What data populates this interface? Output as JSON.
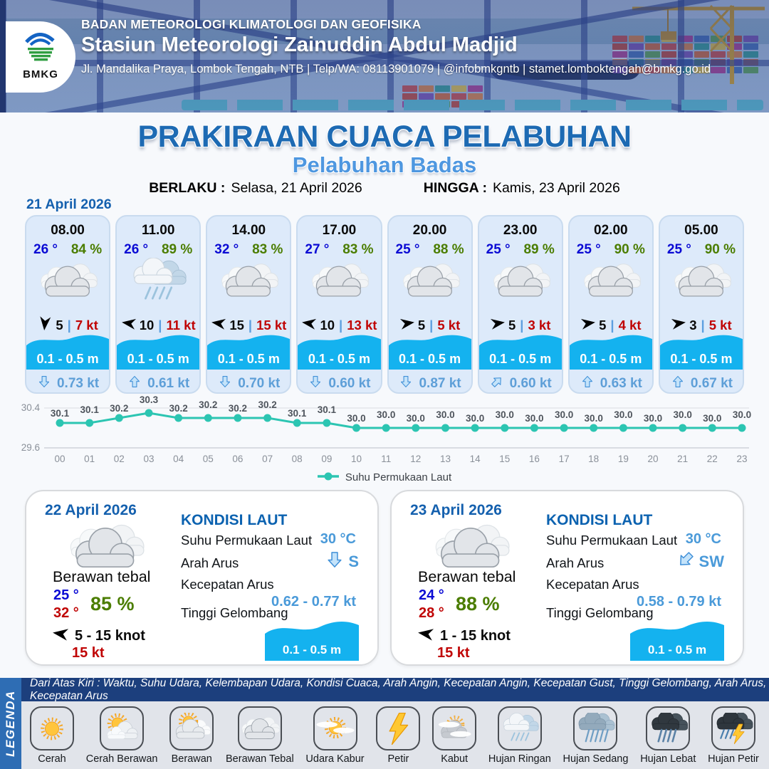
{
  "header": {
    "logo_label": "BMKG",
    "agency": "BADAN METEOROLOGI KLIMATOLOGI DAN GEOFISIKA",
    "station": "Stasiun Meteorologi Zainuddin Abdul Madjid",
    "contact": "Jl. Mandalika Praya, Lombok Tengah, NTB | Telp/WA: 08113901079 | @infobmkgntb | stamet.lomboktengah@bmkg.go.id"
  },
  "title": {
    "main": "PRAKIRAAN CUACA PELABUHAN",
    "subtitle": "Pelabuhan Badas",
    "berlaku_label": "BERLAKU :",
    "berlaku_value": "Selasa, 21 April 2026",
    "hingga_label": "HINGGA :",
    "hingga_value": "Kamis, 23 April 2026"
  },
  "forecast": {
    "date_label": "21 April 2026",
    "sep": "|",
    "cards": [
      {
        "time": "08.00",
        "temp": "26 °",
        "humidity": "84 %",
        "weather_icon": "berawan-tebal",
        "wind_dir": "down",
        "wind_speed": "5",
        "gust": "7 kt",
        "wave": "0.1 - 0.5 m",
        "current_dir": "down",
        "current_speed": "0.73 kt"
      },
      {
        "time": "11.00",
        "temp": "26 °",
        "humidity": "89 %",
        "weather_icon": "hujan-ringan",
        "wind_dir": "left",
        "wind_speed": "10",
        "gust": "11 kt",
        "wave": "0.1 - 0.5 m",
        "current_dir": "up",
        "current_speed": "0.61 kt"
      },
      {
        "time": "14.00",
        "temp": "32 °",
        "humidity": "83 %",
        "weather_icon": "berawan-tebal",
        "wind_dir": "left",
        "wind_speed": "15",
        "gust": "15 kt",
        "wave": "0.1 - 0.5 m",
        "current_dir": "down",
        "current_speed": "0.70 kt"
      },
      {
        "time": "17.00",
        "temp": "27 °",
        "humidity": "83 %",
        "weather_icon": "berawan-tebal",
        "wind_dir": "left",
        "wind_speed": "10",
        "gust": "13 kt",
        "wave": "0.1 - 0.5 m",
        "current_dir": "down",
        "current_speed": "0.60 kt"
      },
      {
        "time": "20.00",
        "temp": "25 °",
        "humidity": "88 %",
        "weather_icon": "berawan-tebal",
        "wind_dir": "right",
        "wind_speed": "5",
        "gust": "5 kt",
        "wave": "0.1 - 0.5 m",
        "current_dir": "down",
        "current_speed": "0.87 kt"
      },
      {
        "time": "23.00",
        "temp": "25 °",
        "humidity": "89 %",
        "weather_icon": "berawan-tebal",
        "wind_dir": "right",
        "wind_speed": "5",
        "gust": "3 kt",
        "wave": "0.1 - 0.5 m",
        "current_dir": "ne",
        "current_speed": "0.60 kt"
      },
      {
        "time": "02.00",
        "temp": "25 °",
        "humidity": "90 %",
        "weather_icon": "berawan-tebal",
        "wind_dir": "right",
        "wind_speed": "5",
        "gust": "4 kt",
        "wave": "0.1 - 0.5 m",
        "current_dir": "up",
        "current_speed": "0.63 kt"
      },
      {
        "time": "05.00",
        "temp": "25 °",
        "humidity": "90 %",
        "weather_icon": "berawan-tebal",
        "wind_dir": "right",
        "wind_speed": "3",
        "gust": "5 kt",
        "wave": "0.1 - 0.5 m",
        "current_dir": "up",
        "current_speed": "0.67 kt"
      }
    ]
  },
  "chart_data": {
    "type": "line",
    "title": "",
    "series_name": "Suhu Permukaan Laut",
    "x": [
      "00",
      "01",
      "02",
      "03",
      "04",
      "05",
      "06",
      "07",
      "08",
      "09",
      "10",
      "11",
      "12",
      "13",
      "14",
      "15",
      "16",
      "17",
      "18",
      "19",
      "20",
      "21",
      "22",
      "23"
    ],
    "values": [
      30.1,
      30.1,
      30.2,
      30.3,
      30.2,
      30.2,
      30.2,
      30.2,
      30.1,
      30.1,
      30.0,
      30.0,
      30.0,
      30.0,
      30.0,
      30.0,
      30.0,
      30.0,
      30.0,
      30.0,
      30.0,
      30.0,
      30.0,
      30.0
    ],
    "ylim": [
      29.6,
      30.4
    ],
    "yticks": [
      "30.4",
      "29.6"
    ],
    "line_color": "#2cc5b2",
    "grid": true,
    "legend_position": "bottom"
  },
  "days": [
    {
      "date": "22 April 2026",
      "condition": "Berawan tebal",
      "weather_icon": "berawan-tebal",
      "temp_min": "25 °",
      "temp_max": "32 °",
      "humidity": "85 %",
      "wind_dir": "left",
      "wind_range": "5  - 15 knot",
      "gust": "15 kt",
      "sea_title": "KONDISI LAUT",
      "sst_label": "Suhu Permukaan Laut",
      "sst_value": "30 °C",
      "current_dir_label": "Arah Arus",
      "current_dir_value": "S",
      "current_dir": "down",
      "current_speed_label": "Kecepatan Arus",
      "current_speed_value": "0.62  - 0.77 kt",
      "wave_label": "Tinggi Gelombang",
      "wave_value": "0.1 - 0.5 m"
    },
    {
      "date": "23 April 2026",
      "condition": "Berawan tebal",
      "weather_icon": "berawan-tebal",
      "temp_min": "24 °",
      "temp_max": "28 °",
      "humidity": "88 %",
      "wind_dir": "left",
      "wind_range": "1  - 15 knot",
      "gust": "15 kt",
      "sea_title": "KONDISI LAUT",
      "sst_label": "Suhu Permukaan Laut",
      "sst_value": "30 °C",
      "current_dir_label": "Arah Arus",
      "current_dir_value": "SW",
      "current_dir": "sw",
      "current_speed_label": "Kecepatan Arus",
      "current_speed_value": "0.58  - 0.79 kt",
      "wave_label": "Tinggi Gelombang",
      "wave_value": "0.1 - 0.5 m"
    }
  ],
  "legend": {
    "title": "LEGENDA",
    "description": "Dari Atas Kiri : Waktu, Suhu Udara, Kelembapan Udara, Kondisi Cuaca, Arah Angin, Kecepatan Angin, Kecepatan Gust, Tinggi Gelombang, Arah Arus, Kecepatan Arus",
    "items": [
      {
        "label": "Cerah",
        "icon": "cerah"
      },
      {
        "label": "Cerah Berawan",
        "icon": "cerah-berawan"
      },
      {
        "label": "Berawan",
        "icon": "berawan"
      },
      {
        "label": "Berawan Tebal",
        "icon": "berawan-tebal"
      },
      {
        "label": "Udara Kabur",
        "icon": "udara-kabur"
      },
      {
        "label": "Petir",
        "icon": "petir"
      },
      {
        "label": "Kabut",
        "icon": "kabut"
      },
      {
        "label": "Hujan Ringan",
        "icon": "hujan-ringan"
      },
      {
        "label": "Hujan Sedang",
        "icon": "hujan-sedang"
      },
      {
        "label": "Hujan Lebat",
        "icon": "hujan-lebat"
      },
      {
        "label": "Hujan Petir",
        "icon": "hujan-petir"
      }
    ]
  },
  "colors": {
    "title_blue": "#1d6ab3",
    "subtitle_blue": "#4e97e0",
    "wave_cyan": "#14b2ef",
    "chart_teal": "#2cc5b2",
    "temp_blue": "#0a0ad4",
    "humidity_green": "#4b7d00",
    "gust_red": "#c00404",
    "current_blue": "#5e9fd8",
    "legend_navy": "#1c3f7d",
    "legend_band_blue": "#2e6db4"
  }
}
